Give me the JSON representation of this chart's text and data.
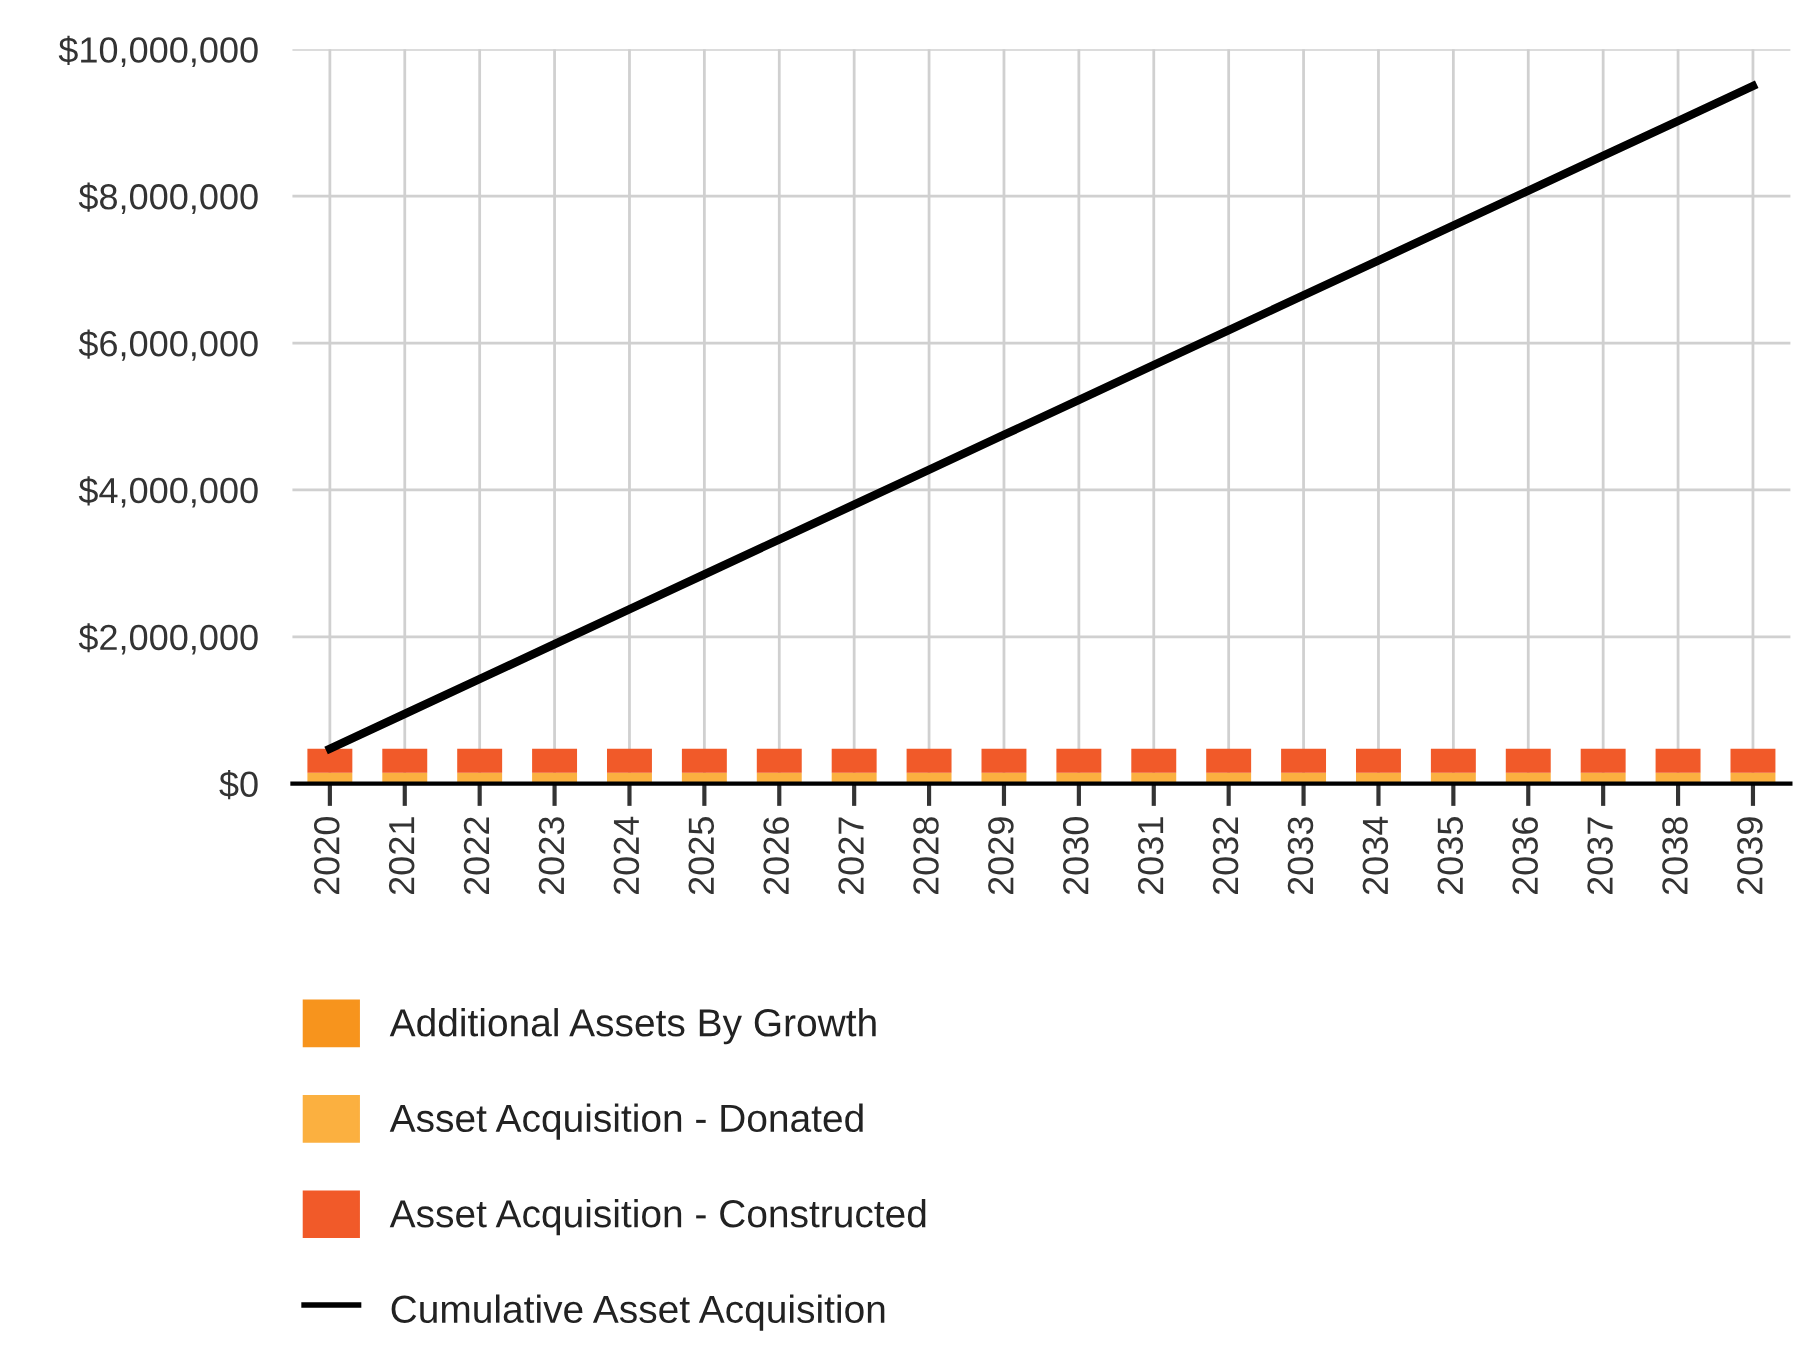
{
  "chart_data": {
    "type": "bar",
    "stacked": true,
    "categories": [
      "2020",
      "2021",
      "2022",
      "2023",
      "2024",
      "2025",
      "2026",
      "2027",
      "2028",
      "2029",
      "2030",
      "2031",
      "2032",
      "2033",
      "2034",
      "2035",
      "2036",
      "2037",
      "2038",
      "2039"
    ],
    "series": [
      {
        "name": "Additional Assets By Growth",
        "color": "#f7941d",
        "values": [
          0,
          0,
          0,
          0,
          0,
          0,
          0,
          0,
          0,
          0,
          0,
          0,
          0,
          0,
          0,
          0,
          0,
          0,
          0,
          0
        ]
      },
      {
        "name": "Asset Acquisition - Donated",
        "color": "#fbb040",
        "values": [
          150000,
          150000,
          150000,
          150000,
          150000,
          150000,
          150000,
          150000,
          150000,
          150000,
          150000,
          150000,
          150000,
          150000,
          150000,
          150000,
          150000,
          150000,
          150000,
          150000
        ]
      },
      {
        "name": "Asset Acquisition - Constructed",
        "color": "#f15a29",
        "values": [
          325000,
          325000,
          325000,
          325000,
          325000,
          325000,
          325000,
          325000,
          325000,
          325000,
          325000,
          325000,
          325000,
          325000,
          325000,
          325000,
          325000,
          325000,
          325000,
          325000
        ]
      },
      {
        "name": "Cumulative Asset Acquisition",
        "type": "line",
        "color": "#000000",
        "values": [
          475000,
          950000,
          1425000,
          1900000,
          2375000,
          2850000,
          3325000,
          3800000,
          4275000,
          4750000,
          5225000,
          5700000,
          6175000,
          6650000,
          7125000,
          7600000,
          8075000,
          8550000,
          9025000,
          9500000
        ]
      }
    ],
    "ylim": [
      0,
      10000000
    ],
    "yticks": [
      {
        "value": 0,
        "label": "$0"
      },
      {
        "value": 2000000,
        "label": "$2,000,000"
      },
      {
        "value": 4000000,
        "label": "$4,000,000"
      },
      {
        "value": 6000000,
        "label": "$6,000,000"
      },
      {
        "value": 8000000,
        "label": "$8,000,000"
      },
      {
        "value": 10000000,
        "label": "$10,000,000"
      }
    ],
    "grid": true,
    "legend": "bottom",
    "marker": "none",
    "line_style": "solid"
  }
}
